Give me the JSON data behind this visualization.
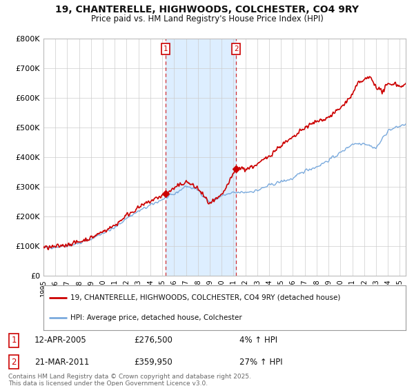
{
  "title": "19, CHANTERELLE, HIGHWOODS, COLCHESTER, CO4 9RY",
  "subtitle": "Price paid vs. HM Land Registry's House Price Index (HPI)",
  "ylim": [
    0,
    800000
  ],
  "yticks": [
    0,
    100000,
    200000,
    300000,
    400000,
    500000,
    600000,
    700000,
    800000
  ],
  "ytick_labels": [
    "£0",
    "£100K",
    "£200K",
    "£300K",
    "£400K",
    "£500K",
    "£600K",
    "£700K",
    "£800K"
  ],
  "xlim_start": 1995.0,
  "xlim_end": 2025.5,
  "red_line_color": "#cc0000",
  "blue_line_color": "#7aaadd",
  "transaction1_date": 2005.27,
  "transaction1_price": 276500,
  "transaction1_label": "1",
  "transaction2_date": 2011.22,
  "transaction2_price": 359950,
  "transaction2_label": "2",
  "legend_line1": "19, CHANTERELLE, HIGHWOODS, COLCHESTER, CO4 9RY (detached house)",
  "legend_line2": "HPI: Average price, detached house, Colchester",
  "ann1_num": "1",
  "ann1_date": "12-APR-2005",
  "ann1_price": "£276,500",
  "ann1_hpi": "4% ↑ HPI",
  "ann2_num": "2",
  "ann2_date": "21-MAR-2011",
  "ann2_price": "£359,950",
  "ann2_hpi": "27% ↑ HPI",
  "footer": "Contains HM Land Registry data © Crown copyright and database right 2025.\nThis data is licensed under the Open Government Licence v3.0.",
  "background_color": "#ffffff",
  "span_color": "#ddeeff"
}
